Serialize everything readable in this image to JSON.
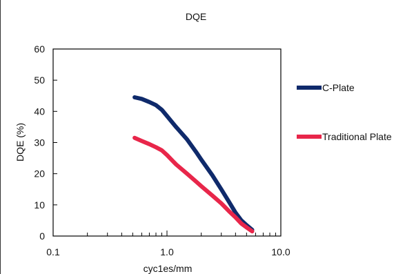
{
  "chart_data": {
    "type": "line",
    "title": "DQE",
    "xlabel": "cyc1es/mm",
    "ylabel": "DQE (%)",
    "xscale": "log",
    "xlim": [
      0.1,
      10.0
    ],
    "ylim": [
      0,
      60
    ],
    "x_ticks": [
      0.1,
      1.0,
      10.0
    ],
    "x_tick_labels": [
      "0.1",
      "1.0",
      "10.0"
    ],
    "y_ticks": [
      0,
      10,
      20,
      30,
      40,
      50,
      60
    ],
    "y_tick_labels": [
      "0",
      "10",
      "20",
      "30",
      "40",
      "50",
      "60"
    ],
    "grid": false,
    "legend_position": "right",
    "series": [
      {
        "name": "C-Plate",
        "color": "#0f2a6b",
        "points": [
          [
            0.52,
            44.5
          ],
          [
            0.6,
            44.0
          ],
          [
            0.7,
            43.0
          ],
          [
            0.8,
            42.0
          ],
          [
            0.9,
            40.5
          ],
          [
            1.0,
            38.5
          ],
          [
            1.2,
            35.0
          ],
          [
            1.5,
            31.0
          ],
          [
            1.8,
            27.0
          ],
          [
            2.0,
            24.5
          ],
          [
            2.5,
            19.5
          ],
          [
            3.0,
            15.0
          ],
          [
            3.5,
            11.0
          ],
          [
            4.0,
            7.5
          ],
          [
            4.5,
            5.0
          ],
          [
            5.0,
            3.5
          ],
          [
            5.6,
            2.0
          ]
        ]
      },
      {
        "name": "Traditional Plate",
        "color": "#e8264a",
        "points": [
          [
            0.52,
            31.5
          ],
          [
            0.6,
            30.5
          ],
          [
            0.7,
            29.5
          ],
          [
            0.8,
            28.5
          ],
          [
            0.9,
            27.5
          ],
          [
            1.0,
            26.0
          ],
          [
            1.2,
            23.0
          ],
          [
            1.5,
            20.0
          ],
          [
            1.8,
            17.5
          ],
          [
            2.0,
            16.0
          ],
          [
            2.5,
            13.0
          ],
          [
            3.0,
            10.5
          ],
          [
            3.5,
            8.0
          ],
          [
            4.0,
            6.0
          ],
          [
            4.5,
            4.0
          ],
          [
            5.0,
            2.8
          ],
          [
            5.6,
            1.5
          ]
        ]
      }
    ]
  }
}
